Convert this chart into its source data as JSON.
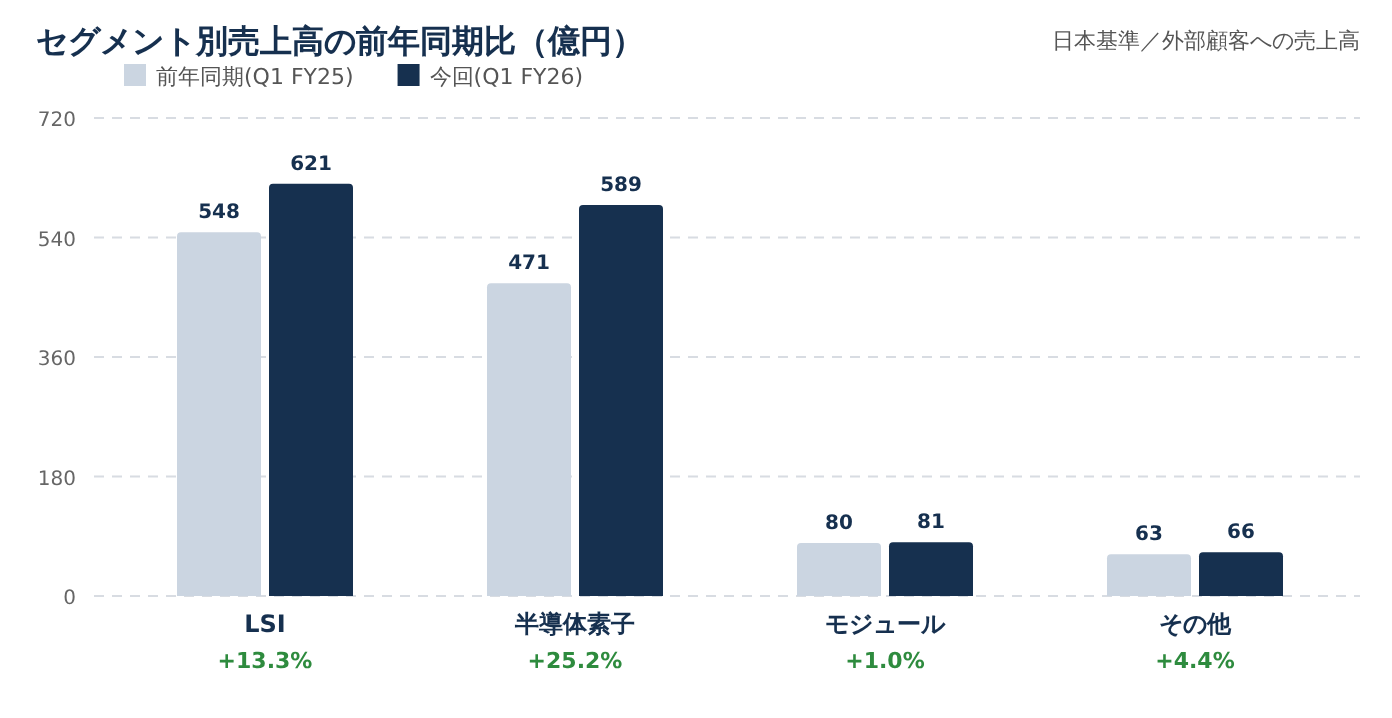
{
  "chart_data": {
    "type": "bar",
    "title": "セグメント別売上高の前年同期比（億円）",
    "subtitle": "日本基準／外部顧客への売上高",
    "categories": [
      "LSI",
      "半導体素子",
      "モジュール",
      "その他"
    ],
    "series": [
      {
        "name": "前年同期(Q1 FY25)",
        "color": "#cbd5e1",
        "values": [
          548,
          471,
          80,
          63
        ]
      },
      {
        "name": "今回(Q1 FY26)",
        "color": "#16304f",
        "values": [
          621,
          589,
          81,
          66
        ]
      }
    ],
    "ylim": [
      0,
      720
    ],
    "yticks": [
      0,
      180,
      360,
      540,
      720
    ],
    "grid": "y",
    "legend": "top left",
    "data_labels": true,
    "annotations": [
      "+13.3%",
      "+25.2%",
      "+1.0%",
      "+4.4%"
    ]
  }
}
